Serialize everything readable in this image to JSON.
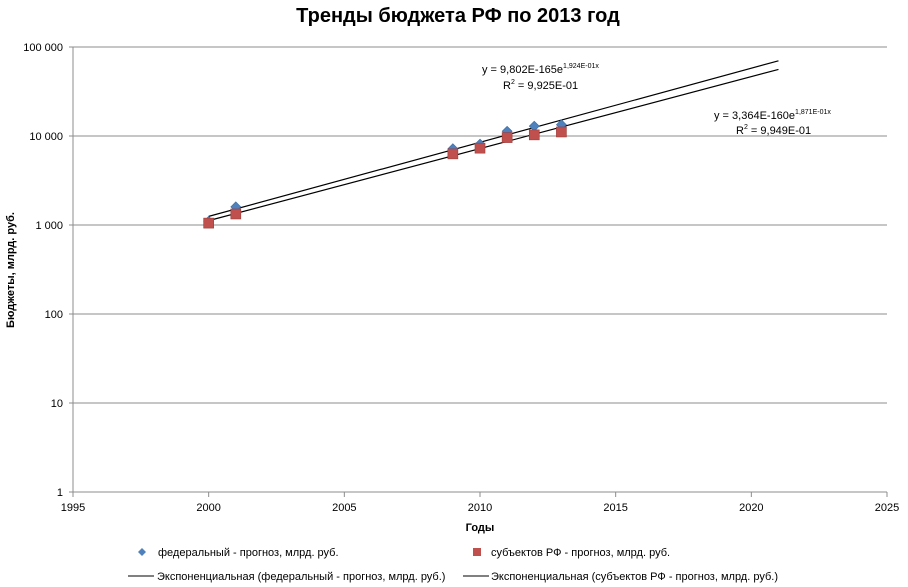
{
  "chart_data": {
    "type": "scatter",
    "title": "Тренды бюджета РФ по 2013 год",
    "xlabel": "Годы",
    "ylabel": "Бюджеты, млрд. руб.",
    "xlim": [
      1995,
      2025
    ],
    "ylim": [
      1,
      100000
    ],
    "y_scale": "log",
    "x_ticks": [
      1995,
      2000,
      2005,
      2010,
      2015,
      2020,
      2025
    ],
    "y_ticks": [
      1,
      10,
      100,
      1000,
      10000,
      100000
    ],
    "y_tick_labels": [
      "1",
      "10",
      "100",
      "1 000",
      "10 000",
      "100 000"
    ],
    "grid": "horizontal",
    "series": [
      {
        "name": "федеральный - прогноз, млрд. руб.",
        "marker": "diamond",
        "color": "#4F81BD",
        "points": [
          {
            "x": 2000,
            "y": 1100
          },
          {
            "x": 2001,
            "y": 1600
          },
          {
            "x": 2009,
            "y": 7200
          },
          {
            "x": 2010,
            "y": 8100
          },
          {
            "x": 2011,
            "y": 11300
          },
          {
            "x": 2012,
            "y": 12900
          },
          {
            "x": 2013,
            "y": 13400
          }
        ]
      },
      {
        "name": "субъектов РФ - прогноз, млрд. руб.",
        "marker": "square",
        "color": "#C0504D",
        "points": [
          {
            "x": 2000,
            "y": 1050
          },
          {
            "x": 2001,
            "y": 1330
          },
          {
            "x": 2009,
            "y": 6300
          },
          {
            "x": 2010,
            "y": 7300
          },
          {
            "x": 2011,
            "y": 9600
          },
          {
            "x": 2012,
            "y": 10300
          },
          {
            "x": 2013,
            "y": 11100
          }
        ]
      }
    ],
    "trendlines": [
      {
        "name": "Экспоненциальная (федеральный - прогноз, млрд. руб.)",
        "type": "exponential",
        "x_range": [
          2000,
          2021
        ],
        "y_start": 1250,
        "y_end": 70000,
        "equation_main": "y = 9,802E-165e",
        "equation_exp": "1,924E-01x",
        "r2_label": "R",
        "r2_exp": "2",
        "r2_value": " = 9,925E-01"
      },
      {
        "name": "Экспоненциальная (субъектов РФ - прогноз, млрд. руб.)",
        "type": "exponential",
        "x_range": [
          2000,
          2021
        ],
        "y_start": 1120,
        "y_end": 56000,
        "equation_main": "y = 3,364E-160e",
        "equation_exp": "1,871E-01x",
        "r2_label": "R",
        "r2_exp": "2",
        "r2_value": " = 9,949E-01"
      }
    ],
    "legend_position": "bottom"
  }
}
